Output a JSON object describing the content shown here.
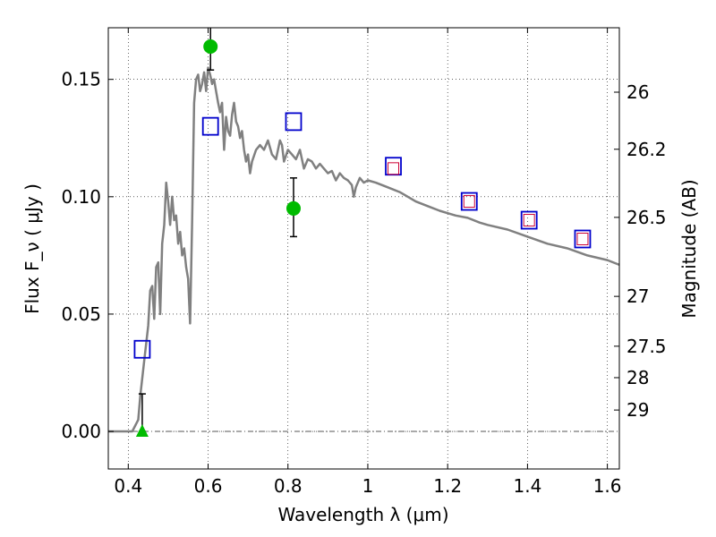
{
  "chart_data": {
    "type": "scatter",
    "xlabel": "Wavelength  λ (μm)",
    "ylabel": "Flux  F_ν  ( μJy )",
    "y2label": "Magnitude (AB)",
    "xlim": [
      0.35,
      1.63
    ],
    "ylim": [
      -0.016,
      0.172
    ],
    "grid": true,
    "x_ticks": [
      0.4,
      0.6,
      0.8,
      1.0,
      1.2,
      1.4,
      1.6
    ],
    "x_tick_labels": [
      "0.4",
      "0.6",
      "0.8",
      "1",
      "1.2",
      "1.4",
      "1.6"
    ],
    "y_ticks": [
      0.0,
      0.05,
      0.1,
      0.15
    ],
    "y_tick_labels": [
      "0.00",
      "0.05",
      "0.10",
      "0.15"
    ],
    "y2_ticks": [
      26,
      26.2,
      26.5,
      27,
      27.5,
      28,
      29
    ],
    "y2_tick_labels": [
      "26",
      "26.2",
      "26.5",
      "27",
      "27.5",
      "28",
      "29"
    ],
    "colors": {
      "template": "#808080",
      "measured": "#00bb00",
      "model_box": "#0000cc",
      "model_inner": "#cc0033",
      "errorbar": "#000000",
      "zero_line": "#555555"
    },
    "series": [
      {
        "marker": "line",
        "x": [
          0.35,
          0.41,
          0.425,
          0.43,
          0.44,
          0.45,
          0.455,
          0.46,
          0.465,
          0.47,
          0.475,
          0.48,
          0.485,
          0.49,
          0.495,
          0.5,
          0.505,
          0.51,
          0.515,
          0.52,
          0.525,
          0.53,
          0.535,
          0.54,
          0.545,
          0.55,
          0.555,
          0.56,
          0.565,
          0.57,
          0.575,
          0.58,
          0.585,
          0.59,
          0.595,
          0.6,
          0.605,
          0.61,
          0.615,
          0.62,
          0.625,
          0.63,
          0.635,
          0.64,
          0.645,
          0.65,
          0.655,
          0.66,
          0.665,
          0.67,
          0.675,
          0.68,
          0.685,
          0.69,
          0.695,
          0.7,
          0.705,
          0.71,
          0.72,
          0.73,
          0.74,
          0.75,
          0.76,
          0.77,
          0.78,
          0.785,
          0.79,
          0.8,
          0.81,
          0.82,
          0.83,
          0.84,
          0.85,
          0.86,
          0.87,
          0.88,
          0.89,
          0.9,
          0.91,
          0.92,
          0.93,
          0.94,
          0.95,
          0.96,
          0.965,
          0.97,
          0.98,
          0.99,
          1.0,
          1.02,
          1.05,
          1.08,
          1.1,
          1.12,
          1.15,
          1.18,
          1.2,
          1.22,
          1.25,
          1.28,
          1.3,
          1.35,
          1.4,
          1.45,
          1.5,
          1.55,
          1.6,
          1.63
        ],
        "y": [
          0.0,
          0.0,
          0.005,
          0.015,
          0.03,
          0.045,
          0.06,
          0.062,
          0.048,
          0.07,
          0.072,
          0.05,
          0.08,
          0.088,
          0.106,
          0.098,
          0.088,
          0.1,
          0.09,
          0.092,
          0.08,
          0.085,
          0.075,
          0.078,
          0.07,
          0.065,
          0.046,
          0.09,
          0.14,
          0.15,
          0.152,
          0.145,
          0.148,
          0.153,
          0.145,
          0.155,
          0.152,
          0.148,
          0.15,
          0.145,
          0.14,
          0.136,
          0.14,
          0.12,
          0.134,
          0.128,
          0.126,
          0.135,
          0.14,
          0.132,
          0.13,
          0.125,
          0.128,
          0.12,
          0.115,
          0.118,
          0.11,
          0.115,
          0.12,
          0.122,
          0.12,
          0.124,
          0.118,
          0.116,
          0.124,
          0.122,
          0.115,
          0.12,
          0.118,
          0.116,
          0.12,
          0.112,
          0.116,
          0.115,
          0.112,
          0.114,
          0.112,
          0.11,
          0.111,
          0.107,
          0.11,
          0.108,
          0.107,
          0.105,
          0.1,
          0.104,
          0.108,
          0.106,
          0.107,
          0.106,
          0.104,
          0.102,
          0.1,
          0.098,
          0.096,
          0.094,
          0.093,
          0.092,
          0.091,
          0.089,
          0.088,
          0.086,
          0.083,
          0.08,
          0.078,
          0.075,
          0.073,
          0.071
        ]
      },
      {
        "marker": "circle",
        "x": [
          0.606,
          0.814
        ],
        "y": [
          0.164,
          0.095
        ]
      },
      {
        "marker": "errorbar",
        "x": [
          0.606,
          0.814,
          0.435
        ],
        "y": [
          0.164,
          0.095,
          0.0
        ],
        "y_low": [
          0.154,
          0.083,
          0.0
        ],
        "y_high": [
          0.172,
          0.108,
          0.016
        ]
      },
      {
        "marker": "triangle",
        "x": [
          0.435
        ],
        "y": [
          0.0
        ]
      },
      {
        "marker": "square",
        "x": [
          0.435,
          0.606,
          0.814,
          1.064,
          1.254,
          1.404,
          1.538
        ],
        "y": [
          0.035,
          0.13,
          0.132,
          0.113,
          0.098,
          0.09,
          0.082
        ]
      },
      {
        "marker": "small-square",
        "x": [
          1.064,
          1.254,
          1.404,
          1.538
        ],
        "y": [
          0.112,
          0.098,
          0.09,
          0.082
        ]
      }
    ]
  }
}
